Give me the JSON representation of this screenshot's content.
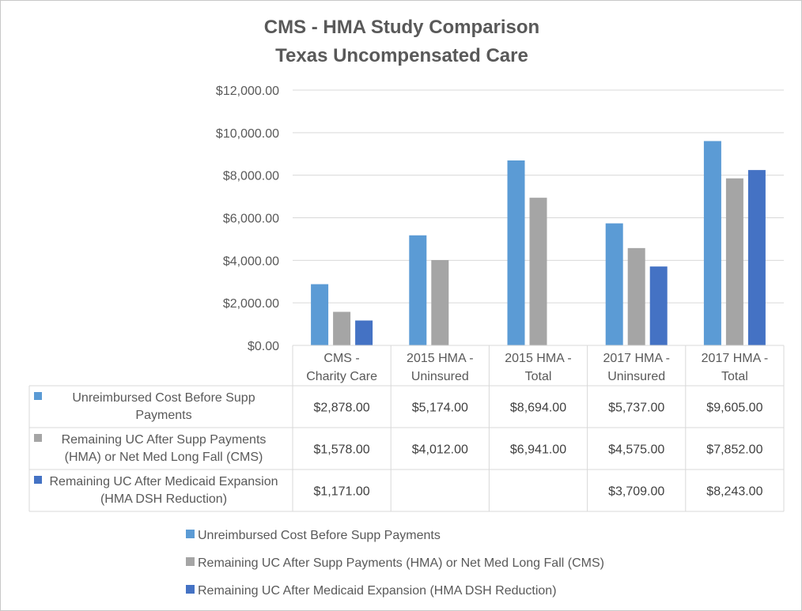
{
  "chart_data": {
    "type": "bar",
    "title": "CMS - HMA Study Comparison",
    "subtitle": "Texas Uncompensated Care",
    "categories": [
      [
        "CMS -",
        "Charity Care"
      ],
      [
        "2015 HMA -",
        "Uninsured"
      ],
      [
        "2015 HMA  -",
        "Total"
      ],
      [
        "2017 HMA -",
        "Uninsured"
      ],
      [
        "2017 HMA  -",
        "Total"
      ]
    ],
    "ylim": [
      0,
      12000
    ],
    "yticks": [
      0,
      2000,
      4000,
      6000,
      8000,
      10000,
      12000
    ],
    "ytick_labels": [
      "$0.00",
      "$2,000.00",
      "$4,000.00",
      "$6,000.00",
      "$8,000.00",
      "$10,000.00",
      "$12,000.00"
    ],
    "grid": true,
    "legend_position": "bottom",
    "series": [
      {
        "name": "Unreimbursed Cost Before Supp Payments",
        "table_label": [
          "Unreimbursed Cost Before Supp",
          "Payments"
        ],
        "color": "#5b9bd5",
        "values": [
          2878,
          5174,
          8694,
          5737,
          9605
        ],
        "cell_labels": [
          "$2,878.00",
          "$5,174.00",
          "$8,694.00",
          "$5,737.00",
          "$9,605.00"
        ]
      },
      {
        "name": "Remaining UC After Supp Payments (HMA) or Net Med Long Fall (CMS)",
        "table_label": [
          "Remaining UC After Supp Payments",
          "(HMA) or Net Med Long Fall (CMS)"
        ],
        "color": "#a5a5a5",
        "values": [
          1578,
          4012,
          6941,
          4575,
          7852
        ],
        "cell_labels": [
          "$1,578.00",
          "$4,012.00",
          "$6,941.00",
          "$4,575.00",
          "$7,852.00"
        ]
      },
      {
        "name": "Remaining UC After Medicaid Expansion (HMA DSH Reduction)",
        "table_label": [
          "Remaining UC After Medicaid Expansion",
          "(HMA DSH Reduction)"
        ],
        "color": "#4472c4",
        "values": [
          1171,
          null,
          null,
          3709,
          8243
        ],
        "cell_labels": [
          "$1,171.00",
          "",
          "",
          "$3,709.00",
          "$8,243.00"
        ]
      }
    ]
  }
}
